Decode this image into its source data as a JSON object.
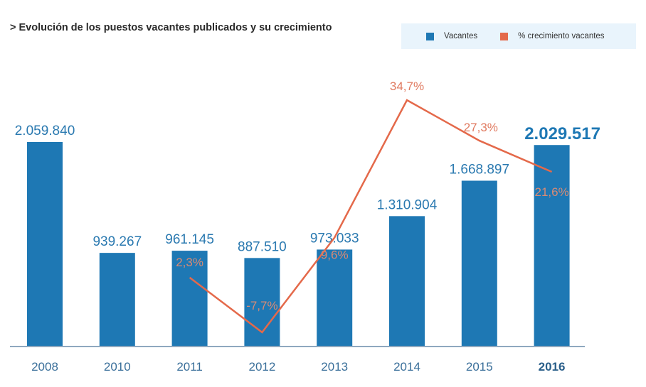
{
  "chart_data": {
    "type": "bar",
    "title": "> Evolución de los puestos vacantes publicados y su crecimiento",
    "xlabel": "",
    "ylabel": "",
    "categories": [
      "2008",
      "2010",
      "2011",
      "2012",
      "2013",
      "2014",
      "2015",
      "2016"
    ],
    "highlight_category": "2016",
    "series": [
      {
        "name": "Vacantes",
        "type": "bar",
        "color": "#1e78b4",
        "values": [
          2059840,
          939267,
          961145,
          887510,
          973033,
          1310904,
          1668897,
          2029517
        ],
        "labels": [
          "2.059.840",
          "939.267",
          "961.145",
          "887.510",
          "973.033",
          "1.310.904",
          "1.668.897",
          "2.029.517"
        ]
      },
      {
        "name": "% crecimiento vacantes",
        "type": "line",
        "color": "#e4694a",
        "categories": [
          "2011",
          "2012",
          "2013",
          "2014",
          "2015",
          "2016"
        ],
        "values": [
          2.3,
          -7.7,
          9.6,
          34.7,
          27.3,
          21.6
        ],
        "labels": [
          "2,3%",
          "-7,7%",
          "9,6%",
          "34,7%",
          "27,3%",
          "21,6%"
        ]
      }
    ],
    "ylim": [
      0,
      2200000
    ],
    "y2lim": [
      -10,
      36
    ],
    "grid": false,
    "legend_position": "top-right"
  },
  "legend": {
    "items": [
      {
        "label": "Vacantes",
        "color": "#1e78b4"
      },
      {
        "label": "% crecimiento vacantes",
        "color": "#e4694a"
      }
    ]
  }
}
